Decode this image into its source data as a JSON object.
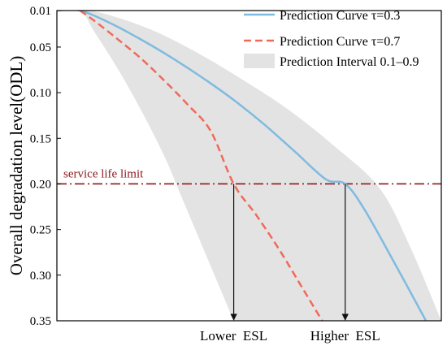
{
  "chart_data": {
    "type": "line",
    "title": "",
    "xlabel": "",
    "ylabel": "Overall degradation level(ODL)",
    "ylim": [
      0.01,
      0.35
    ],
    "y_inverted": true,
    "xlim": [
      0,
      100
    ],
    "y_ticks": [
      0.01,
      0.05,
      0.1,
      0.15,
      0.2,
      0.25,
      0.3,
      0.35
    ],
    "y_tick_labels": [
      "0.01",
      "0.05",
      "0.10",
      "0.15",
      "0.20",
      "0.25",
      "0.30",
      "0.35"
    ],
    "x_tick_labels": [
      {
        "x": 46,
        "label": "Lower  ESL"
      },
      {
        "x": 75,
        "label": "Higher  ESL"
      }
    ],
    "legend_position": "top-right",
    "grid": false,
    "series": [
      {
        "name": "Prediction Curve τ=0.3",
        "style": "solid",
        "color": "#7fbbe0",
        "x": [
          0,
          6,
          14,
          22,
          30,
          38,
          46,
          54,
          62,
          70,
          75,
          80,
          88,
          96
        ],
        "y": [
          0.01,
          0.01,
          0.024,
          0.042,
          0.062,
          0.084,
          0.108,
          0.135,
          0.165,
          0.195,
          0.2,
          0.228,
          0.288,
          0.35
        ]
      },
      {
        "name": "Prediction Curve τ=0.7",
        "style": "dashed",
        "color": "#f06a5a",
        "x": [
          6,
          10,
          16,
          22,
          28,
          34,
          40,
          46,
          52,
          58,
          64,
          69
        ],
        "y": [
          0.01,
          0.022,
          0.042,
          0.063,
          0.087,
          0.113,
          0.142,
          0.2,
          0.235,
          0.273,
          0.315,
          0.35
        ]
      }
    ],
    "interval": {
      "name": "Prediction Interval 0.1–0.9",
      "color": "#e3e3e3",
      "upper_edge": {
        "x": [
          6,
          12,
          24,
          36,
          48,
          60,
          72,
          84,
          92,
          100
        ],
        "y": [
          0.01,
          0.013,
          0.03,
          0.055,
          0.085,
          0.118,
          0.158,
          0.205,
          0.27,
          0.35
        ]
      },
      "lower_edge": {
        "x": [
          0,
          6,
          10,
          16,
          22,
          28,
          32,
          36,
          41,
          46
        ],
        "y": [
          0.01,
          0.01,
          0.035,
          0.075,
          0.12,
          0.17,
          0.21,
          0.25,
          0.3,
          0.35
        ]
      }
    },
    "threshold": {
      "label": "service life limit",
      "y": 0.2,
      "color": "#8b1a1a",
      "style": "dash-dot"
    },
    "annotations": [
      {
        "from": {
          "x": 46,
          "y": 0.2
        },
        "to": {
          "x": 46,
          "y": 0.35
        },
        "type": "arrow"
      },
      {
        "from": {
          "x": 75,
          "y": 0.2
        },
        "to": {
          "x": 75,
          "y": 0.35
        },
        "type": "arrow"
      }
    ]
  }
}
